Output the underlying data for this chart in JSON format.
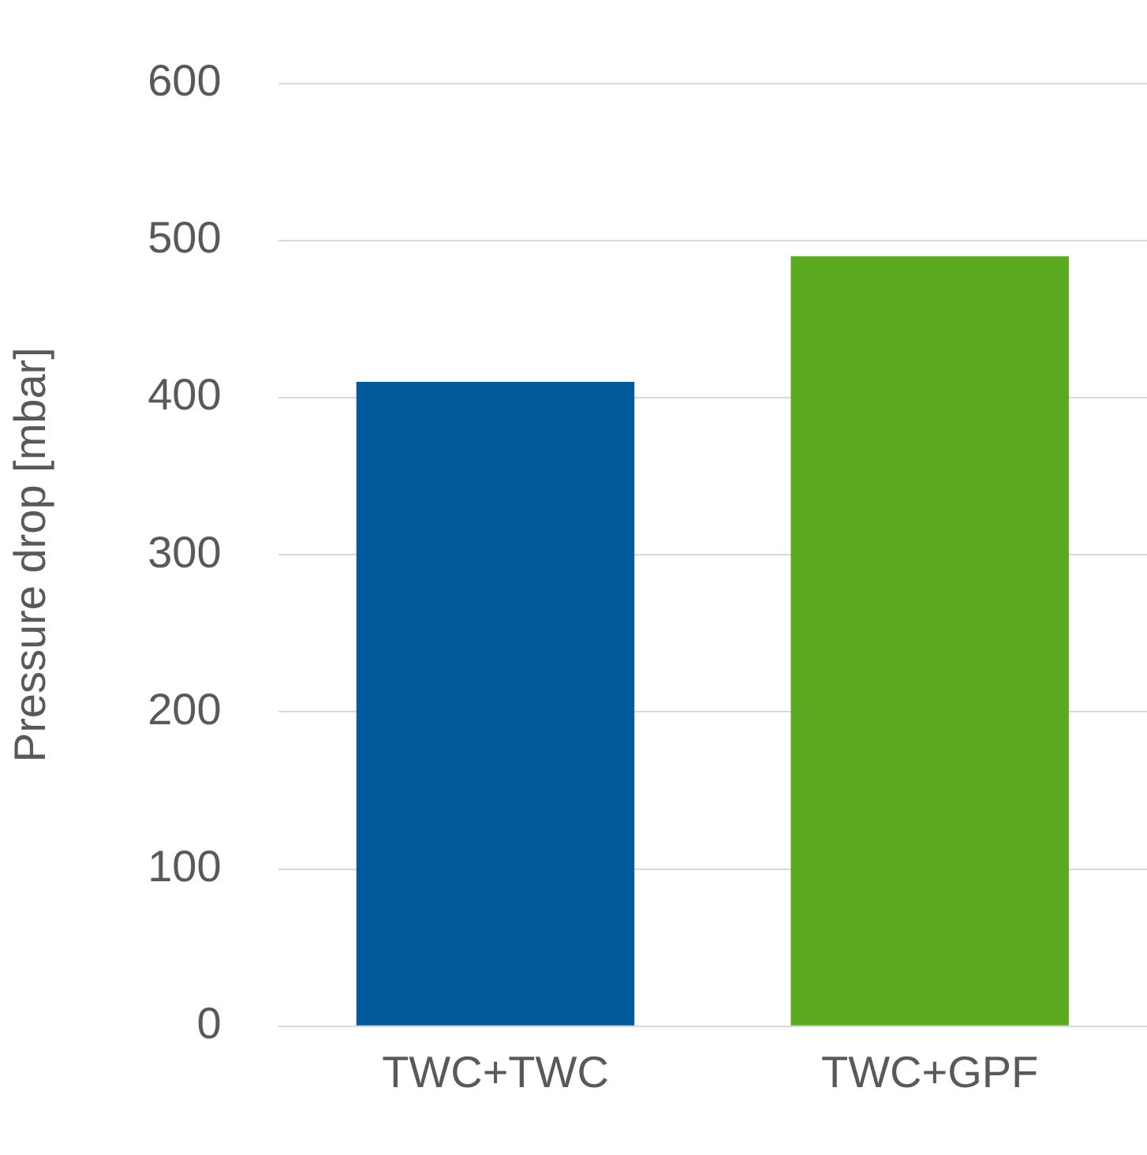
{
  "chart_data": {
    "type": "bar",
    "ylabel": "Pressure drop [mbar]",
    "categories": [
      "TWC+TWC",
      "TWC+GPF"
    ],
    "values": [
      410,
      490
    ],
    "colors": [
      "#005a9b",
      "#5aa91e"
    ],
    "ylim": [
      0,
      600
    ],
    "yticks": [
      0,
      100,
      200,
      300,
      400,
      500,
      600
    ],
    "grid": "y",
    "legend": false
  }
}
